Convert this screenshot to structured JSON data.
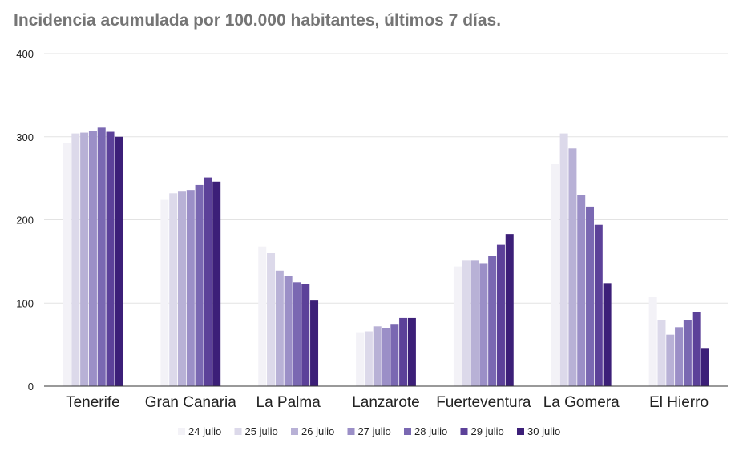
{
  "chart_data": {
    "type": "bar",
    "title": "Incidencia acumulada por 100.000 habitantes, últimos 7 días.",
    "xlabel": "",
    "ylabel": "",
    "ylim": [
      0,
      400
    ],
    "yticks": [
      "0",
      "100",
      "200",
      "300",
      "400"
    ],
    "grid": true,
    "legend_position": "bottom",
    "categories": [
      "Tenerife",
      "Gran Canaria",
      "La Palma",
      "Lanzarote",
      "Fuerteventura",
      "La Gomera",
      "El Hierro"
    ],
    "series": [
      {
        "name": "24 julio",
        "color": "#f3f2f7",
        "values": [
          293,
          224,
          168,
          64,
          144,
          267,
          107
        ]
      },
      {
        "name": "25 julio",
        "color": "#dcd9ea",
        "values": [
          304,
          232,
          160,
          66,
          151,
          304,
          80
        ]
      },
      {
        "name": "26 julio",
        "color": "#b8b1d6",
        "values": [
          305,
          234,
          139,
          72,
          151,
          286,
          62
        ]
      },
      {
        "name": "27 julio",
        "color": "#9b8fc7",
        "values": [
          307,
          236,
          133,
          70,
          148,
          230,
          71
        ]
      },
      {
        "name": "28 julio",
        "color": "#7a68b2",
        "values": [
          311,
          242,
          125,
          74,
          157,
          216,
          80
        ]
      },
      {
        "name": "29 julio",
        "color": "#5c4199",
        "values": [
          306,
          251,
          123,
          82,
          170,
          194,
          89
        ]
      },
      {
        "name": "30 julio",
        "color": "#3c1f78",
        "values": [
          300,
          246,
          103,
          82,
          183,
          124,
          45
        ]
      }
    ]
  }
}
